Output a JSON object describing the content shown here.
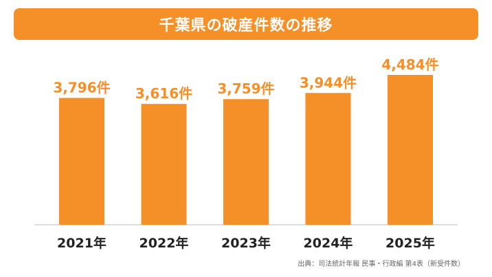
{
  "colors": {
    "accent": "#f58f27",
    "axis": "#bbbbbb",
    "category_text": "#222222",
    "source_text": "#666666"
  },
  "source": "出典：司法統計年報 民事・行政編 第4表（新受件数）",
  "chart_data": {
    "type": "bar",
    "title": "千葉県の破産件数の推移",
    "categories": [
      "2021年",
      "2022年",
      "2023年",
      "2024年",
      "2025年"
    ],
    "values": [
      3796,
      3616,
      3759,
      3944,
      4484
    ],
    "value_labels": [
      "3,796件",
      "3,616件",
      "3,759件",
      "3,944件",
      "4,484件"
    ],
    "xlabel": "",
    "ylabel": "",
    "grid": false,
    "legend": "none"
  }
}
